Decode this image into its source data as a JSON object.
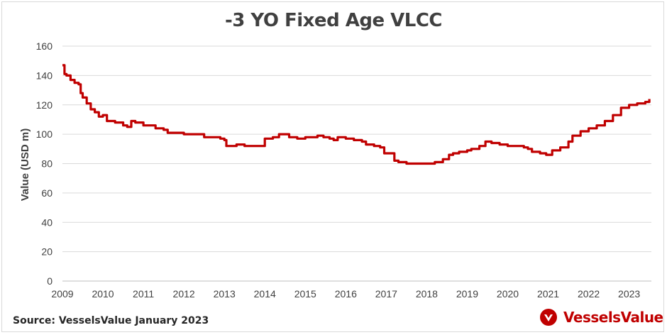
{
  "chart_data": {
    "type": "line",
    "title": "-3 YO Fixed Age VLCC",
    "xlabel": "",
    "ylabel": "Value (USD m)",
    "xlim": [
      2009,
      2023.55
    ],
    "ylim": [
      0,
      160
    ],
    "yticks": [
      0,
      20,
      40,
      60,
      80,
      100,
      120,
      140,
      160
    ],
    "xticks": [
      "2009",
      "2010",
      "2011",
      "2012",
      "2013",
      "2014",
      "2015",
      "2016",
      "2017",
      "2018",
      "2019",
      "2020",
      "2021",
      "2022",
      "2023"
    ],
    "grid": "horizontal",
    "series": [
      {
        "color": "#c00000",
        "x": [
          2009.0,
          2009.05,
          2009.1,
          2009.2,
          2009.3,
          2009.4,
          2009.45,
          2009.5,
          2009.6,
          2009.7,
          2009.8,
          2009.9,
          2010.0,
          2010.1,
          2010.3,
          2010.5,
          2010.6,
          2010.7,
          2010.8,
          2011.0,
          2011.3,
          2011.5,
          2011.6,
          2012.0,
          2012.5,
          2012.9,
          2013.0,
          2013.05,
          2013.2,
          2013.3,
          2013.5,
          2013.7,
          2014.0,
          2014.2,
          2014.35,
          2014.6,
          2014.8,
          2015.0,
          2015.2,
          2015.3,
          2015.45,
          2015.6,
          2015.7,
          2015.8,
          2016.0,
          2016.2,
          2016.4,
          2016.5,
          2016.7,
          2016.85,
          2016.95,
          2017.2,
          2017.3,
          2017.5,
          2017.7,
          2017.9,
          2018.0,
          2018.2,
          2018.4,
          2018.55,
          2018.65,
          2018.8,
          2019.0,
          2019.1,
          2019.3,
          2019.45,
          2019.6,
          2019.8,
          2020.0,
          2020.2,
          2020.4,
          2020.5,
          2020.6,
          2020.8,
          2020.95,
          2021.0,
          2021.1,
          2021.3,
          2021.5,
          2021.6,
          2021.8,
          2022.0,
          2022.2,
          2022.4,
          2022.6,
          2022.8,
          2023.0,
          2023.2,
          2023.4,
          2023.5
        ],
        "y": [
          147,
          141,
          140,
          137,
          135,
          134,
          128,
          125,
          121,
          117,
          115,
          112,
          113,
          109,
          108,
          106,
          105,
          109,
          108,
          106,
          104,
          103,
          101,
          100,
          98,
          97,
          96,
          92,
          92,
          93,
          92,
          92,
          97,
          98,
          100,
          98,
          97,
          98,
          98,
          99,
          98,
          97,
          96,
          98,
          97,
          96,
          95,
          93,
          92,
          91,
          87,
          82,
          81,
          80,
          80,
          80,
          80,
          81,
          83,
          86,
          87,
          88,
          89,
          90,
          92,
          95,
          94,
          93,
          92,
          92,
          91,
          90,
          88,
          87,
          86,
          86,
          89,
          91,
          95,
          99,
          102,
          104,
          106,
          109,
          113,
          118,
          120,
          121,
          122,
          124
        ]
      }
    ]
  },
  "footer": {
    "source": "Source: VesselsValue January 2023",
    "brand": "VesselsValue"
  }
}
